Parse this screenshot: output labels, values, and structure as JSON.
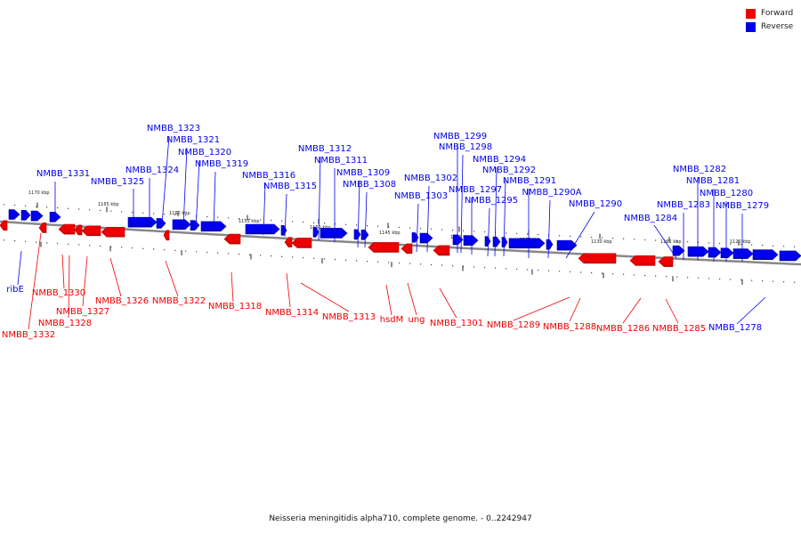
{
  "legend": [
    {
      "label": "Forward",
      "color": "#ee0000"
    },
    {
      "label": "Reverse",
      "color": "#0000ee"
    }
  ],
  "caption": "Neisseria meningitidis alpha710, complete genome. - 0..2242947",
  "colors": {
    "forward": "#ee0000",
    "forward_dark": "#b00000",
    "reverse": "#0000ee",
    "reverse_dark": "#0000a0",
    "backbone": "#888888"
  },
  "ruler": [
    "1170 kbp",
    "1165 kbp",
    "1160 kbp",
    "1155 kbp",
    "1150 kbp",
    "1145 kbp",
    "1140 kbp",
    "1135 kbp",
    "1130 kbp",
    "1125 kbp",
    "1120 kbp"
  ],
  "reverse_labels": [
    "NMBB_1331",
    "NMBB_1325",
    "NMBB_1324",
    "NMBB_1323",
    "NMBB_1321",
    "NMBB_1320",
    "NMBB_1319",
    "NMBB_1316",
    "NMBB_1315",
    "NMBB_1312",
    "NMBB_1311",
    "NMBB_1309",
    "NMBB_1308",
    "NMBB_1303",
    "NMBB_1302",
    "NMBB_1299",
    "NMBB_1298",
    "NMBB_1297",
    "NMBB_1295",
    "NMBB_1294",
    "NMBB_1292",
    "NMBB_1291",
    "NMBB_1290A",
    "NMBB_1290",
    "NMBB_1284",
    "NMBB_1283",
    "NMBB_1282",
    "NMBB_1281",
    "NMBB_1280",
    "NMBB_1279",
    "ribE",
    "NMBB_1278"
  ],
  "forward_labels": [
    "NMBB_1332",
    "NMBB_1330",
    "NMBB_1328",
    "NMBB_1327",
    "NMBB_1326",
    "NMBB_1322",
    "NMBB_1318",
    "NMBB_1314",
    "NMBB_1313",
    "hsdM",
    "ung",
    "NMBB_1301",
    "NMBB_1289",
    "NMBB_1288",
    "NMBB_1286",
    "NMBB_1285"
  ]
}
